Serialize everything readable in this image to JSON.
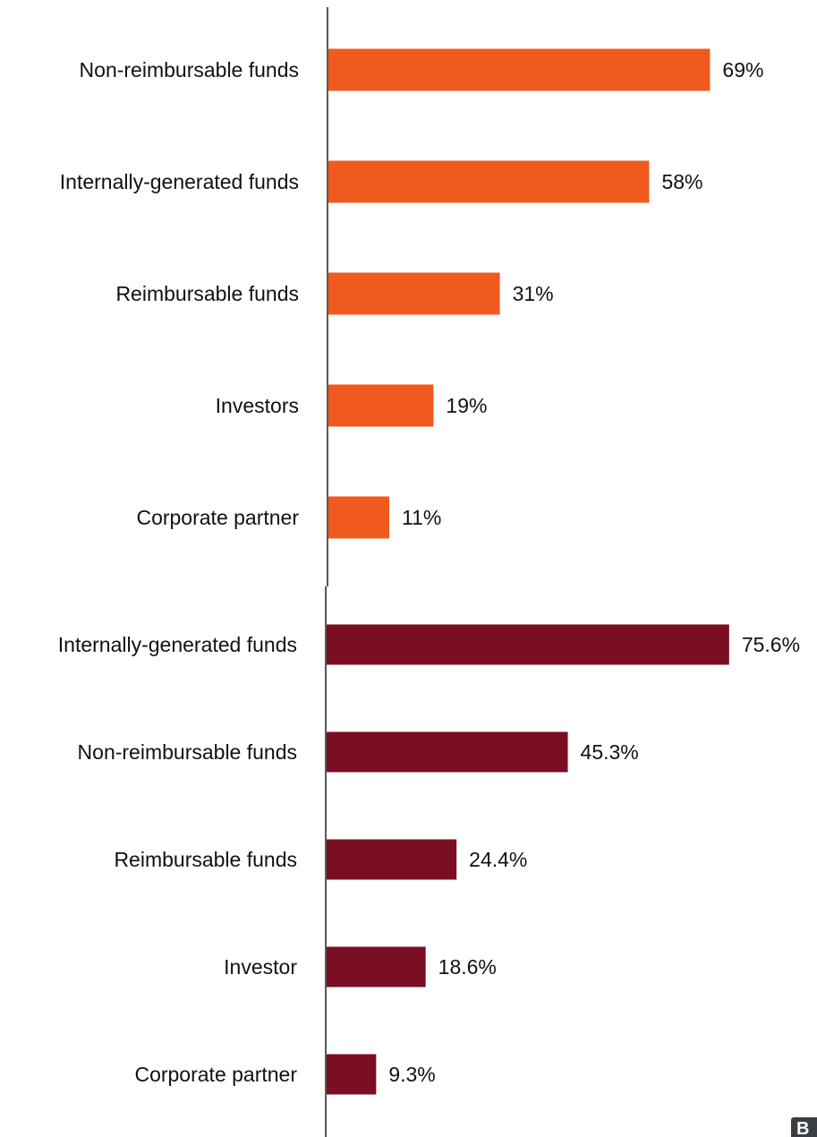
{
  "chart_data": [
    {
      "type": "bar",
      "orientation": "horizontal",
      "color": "#F15A1E",
      "categories": [
        "Non-reimbursable funds",
        "Internally-generated funds",
        "Reimbursable funds",
        "Investors",
        "Corporate partner"
      ],
      "values": [
        69,
        58,
        31,
        19,
        11
      ],
      "value_labels": [
        "69%",
        "58%",
        "31%",
        "19%",
        "11%"
      ],
      "unit": "%",
      "xlim": [
        0,
        80
      ],
      "grid": false,
      "legend": "none"
    },
    {
      "type": "bar",
      "orientation": "horizontal",
      "color": "#7A0E22",
      "categories": [
        "Internally-generated funds",
        "Non-reimbursable funds",
        "Reimbursable funds",
        "Investor",
        "Corporate partner"
      ],
      "values": [
        75.6,
        45.3,
        24.4,
        18.6,
        9.3
      ],
      "value_labels": [
        "75.6%",
        "45.3%",
        "24.4%",
        "18.6%",
        "9.3%"
      ],
      "unit": "%",
      "xlim": [
        0,
        80
      ],
      "grid": false,
      "legend": "none"
    }
  ],
  "corner_badge": {
    "text": "B",
    "color": "#3A3F45"
  }
}
